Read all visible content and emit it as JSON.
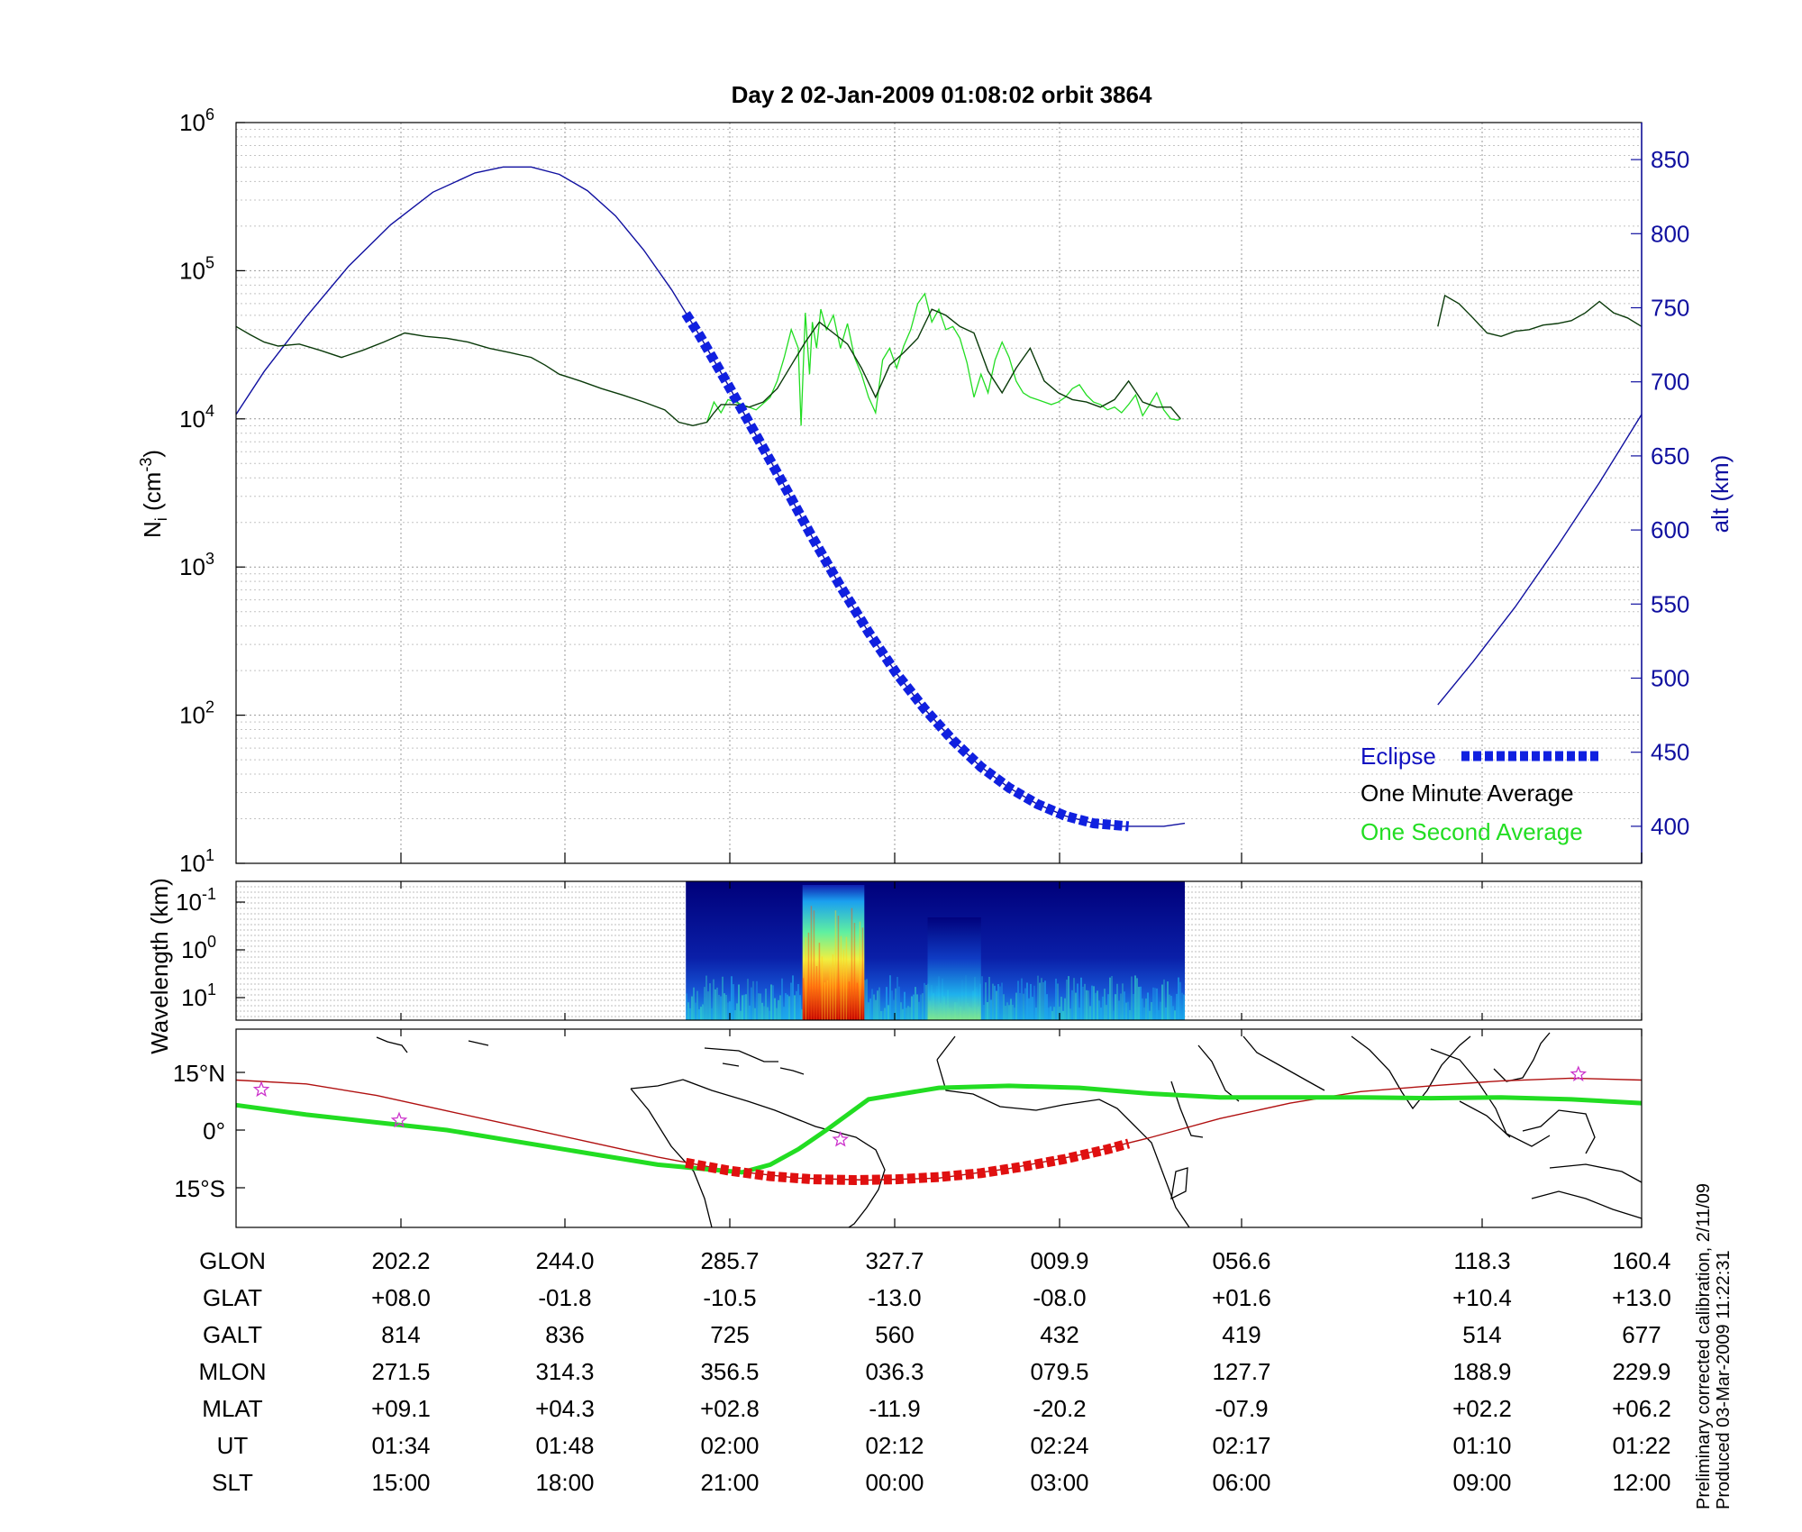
{
  "title": "Day 2  02-Jan-2009 01:08:02   orbit 3864",
  "colors": {
    "altitude": "#1010a0",
    "one_minute": "#0a3a0a",
    "one_second": "#22dd22",
    "eclipse": "#1020e0",
    "ground_track": "#b01010",
    "mag_equator": "#22dd22",
    "star": "#cc33cc"
  },
  "chart_data": [
    {
      "type": "line",
      "name": "density-panel",
      "ylabel_left": "N",
      "ylabel_left_sub": "i",
      "ylabel_left_unit_pre": "(cm",
      "ylabel_left_unit_exp": "-3",
      "ylabel_left_unit_post": ")",
      "ylabel_right": "alt (km)",
      "y_left_scale": "log",
      "y_left_range": [
        10,
        1000000
      ],
      "y_left_ticks": [
        {
          "base": "10",
          "exp": "1",
          "value": 10
        },
        {
          "base": "10",
          "exp": "2",
          "value": 100
        },
        {
          "base": "10",
          "exp": "3",
          "value": 1000
        },
        {
          "base": "10",
          "exp": "4",
          "value": 10000
        },
        {
          "base": "10",
          "exp": "5",
          "value": 100000
        },
        {
          "base": "10",
          "exp": "6",
          "value": 1000000
        }
      ],
      "y_right_range": [
        375,
        875
      ],
      "y_right_ticks": [
        "400",
        "450",
        "500",
        "550",
        "600",
        "650",
        "700",
        "750",
        "800",
        "850"
      ],
      "grid": true,
      "legend_position": "bottom-right",
      "legend": [
        {
          "label": "Eclipse",
          "style": "eclipse"
        },
        {
          "label": "One Minute Average",
          "style": "one_minute"
        },
        {
          "label": "One Second Average",
          "style": "one_second"
        }
      ],
      "series": [
        {
          "name": "alt (km)",
          "axis": "right",
          "x": [
            0,
            0.02,
            0.05,
            0.08,
            0.11,
            0.14,
            0.17,
            0.19,
            0.21,
            0.23,
            0.25,
            0.27,
            0.29,
            0.31,
            0.33,
            0.35,
            0.37,
            0.39,
            0.41,
            0.43,
            0.45,
            0.47,
            0.49,
            0.51,
            0.53,
            0.55,
            0.57,
            0.59,
            0.61,
            0.63,
            0.645,
            0.66,
            0.675
          ],
          "y": [
            678,
            707,
            744,
            778,
            806,
            828,
            841,
            845,
            845,
            840,
            829,
            812,
            789,
            762,
            731,
            698,
            664,
            630,
            595,
            562,
            531,
            503,
            479,
            458,
            440,
            426,
            415,
            407,
            402,
            400,
            400,
            400,
            402
          ]
        },
        {
          "name": "alt (km) (second pass)",
          "axis": "right",
          "x": [
            0.855,
            0.88,
            0.91,
            0.94,
            0.97,
            1.0
          ],
          "y": [
            482,
            511,
            548,
            589,
            632,
            678
          ]
        },
        {
          "name": "Eclipse",
          "axis": "right",
          "x": [
            0.32,
            0.33,
            0.35,
            0.37,
            0.39,
            0.41,
            0.43,
            0.45,
            0.47,
            0.49,
            0.51,
            0.53,
            0.55,
            0.57,
            0.59,
            0.61,
            0.635
          ],
          "y": [
            746,
            731,
            698,
            664,
            630,
            595,
            562,
            531,
            503,
            479,
            458,
            440,
            426,
            415,
            407,
            402,
            400
          ]
        },
        {
          "name": "One Minute Average",
          "axis": "left",
          "x": [
            0,
            0.01,
            0.02,
            0.03,
            0.045,
            0.06,
            0.075,
            0.09,
            0.105,
            0.12,
            0.135,
            0.15,
            0.165,
            0.18,
            0.195,
            0.21,
            0.22,
            0.23,
            0.245,
            0.26,
            0.275,
            0.29,
            0.305,
            0.315,
            0.325,
            0.335,
            0.34,
            0.345,
            0.355,
            0.365,
            0.375,
            0.385,
            0.395,
            0.405,
            0.415,
            0.425,
            0.435,
            0.445,
            0.455,
            0.465,
            0.475,
            0.485,
            0.495,
            0.505,
            0.515,
            0.525,
            0.535,
            0.545,
            0.555,
            0.565,
            0.575,
            0.585,
            0.595,
            0.605,
            0.615,
            0.625,
            0.635,
            0.645,
            0.655,
            0.665,
            0.672
          ],
          "y": [
            42000,
            37000,
            33000,
            31000,
            32000,
            29000,
            26000,
            29000,
            33000,
            38000,
            36000,
            35000,
            33000,
            30000,
            28000,
            26000,
            23000,
            20000,
            18000,
            16000,
            14500,
            13000,
            11500,
            9500,
            9000,
            9500,
            11000,
            12500,
            12500,
            12000,
            13000,
            16000,
            23000,
            33000,
            45000,
            38000,
            32000,
            22000,
            14000,
            23000,
            28000,
            35000,
            55000,
            50000,
            42000,
            38000,
            21000,
            15000,
            22000,
            30000,
            18000,
            15000,
            13500,
            13000,
            12000,
            13500,
            18000,
            13000,
            12000,
            12000,
            10000
          ]
        },
        {
          "name": "One Second Average",
          "axis": "left",
          "x": [
            0.335,
            0.34,
            0.345,
            0.35,
            0.36,
            0.37,
            0.38,
            0.385,
            0.39,
            0.395,
            0.4,
            0.402,
            0.405,
            0.408,
            0.41,
            0.413,
            0.416,
            0.42,
            0.425,
            0.43,
            0.435,
            0.44,
            0.445,
            0.45,
            0.455,
            0.46,
            0.465,
            0.47,
            0.475,
            0.48,
            0.485,
            0.49,
            0.495,
            0.5,
            0.505,
            0.51,
            0.515,
            0.52,
            0.525,
            0.53,
            0.535,
            0.54,
            0.545,
            0.55,
            0.555,
            0.56,
            0.565,
            0.57,
            0.575,
            0.58,
            0.585,
            0.59,
            0.595,
            0.6,
            0.605,
            0.61,
            0.615,
            0.62,
            0.625,
            0.63,
            0.635,
            0.64,
            0.645,
            0.65,
            0.655,
            0.66,
            0.665,
            0.67,
            0.672
          ],
          "y": [
            9500,
            13000,
            11000,
            13500,
            12500,
            11500,
            14000,
            18000,
            26000,
            40000,
            30000,
            9000,
            52000,
            20000,
            45000,
            30000,
            55000,
            40000,
            50000,
            30000,
            44000,
            26000,
            20000,
            14000,
            11000,
            25000,
            30000,
            22000,
            31000,
            40000,
            60000,
            70000,
            45000,
            55000,
            40000,
            42000,
            35000,
            24000,
            14000,
            20000,
            15000,
            25000,
            33000,
            26000,
            18000,
            15000,
            14000,
            13500,
            13000,
            12500,
            13000,
            14000,
            16000,
            17000,
            14500,
            13000,
            12500,
            11500,
            12000,
            11000,
            12500,
            14500,
            10500,
            12500,
            15000,
            11500,
            10000,
            9800,
            10000
          ]
        },
        {
          "name": "One Minute Average (second pass)",
          "axis": "left",
          "x": [
            0.855,
            0.86,
            0.87,
            0.88,
            0.89,
            0.9,
            0.91,
            0.92,
            0.93,
            0.94,
            0.95,
            0.96,
            0.97,
            0.98,
            0.99,
            1.0
          ],
          "y": [
            42000,
            68000,
            60000,
            48000,
            38000,
            36000,
            39000,
            40000,
            43000,
            44000,
            46000,
            52000,
            62000,
            52000,
            48000,
            42000
          ]
        }
      ]
    },
    {
      "type": "heatmap",
      "name": "spectrogram-panel",
      "ylabel": "Wavelength (km)",
      "y_ticks": [
        {
          "base": "10",
          "exp": "-1"
        },
        {
          "base": "10",
          "exp": "0"
        },
        {
          "base": "10",
          "exp": "1"
        }
      ],
      "x_range": [
        0.32,
        0.675
      ],
      "intense_band": [
        0.403,
        0.447
      ],
      "secondary_band": [
        0.492,
        0.53
      ]
    },
    {
      "type": "line",
      "name": "track-panel",
      "y_ticks": [
        "15°N",
        "0°",
        "15°S"
      ],
      "y_range": [
        -25,
        25
      ],
      "series": [
        {
          "name": "ground track",
          "x": [
            0,
            0.05,
            0.1,
            0.15,
            0.2,
            0.25,
            0.3,
            0.35,
            0.4,
            0.45,
            0.5,
            0.55,
            0.6,
            0.65,
            0.67,
            0.7,
            0.75,
            0.8,
            0.85,
            0.9,
            0.95,
            1.0
          ],
          "y": [
            13,
            12,
            9,
            5,
            1,
            -3,
            -7,
            -10.5,
            -12.5,
            -13,
            -12.5,
            -10,
            -6.5,
            -2,
            0,
            3,
            7,
            10,
            11.5,
            12.8,
            13.5,
            13
          ]
        },
        {
          "name": "eclipse track",
          "x": [
            0.32,
            0.35,
            0.38,
            0.41,
            0.44,
            0.47,
            0.5,
            0.53,
            0.56,
            0.59,
            0.62,
            0.635
          ],
          "y": [
            -8.5,
            -10.5,
            -12,
            -12.8,
            -13,
            -12.8,
            -12.2,
            -11.2,
            -9.5,
            -7.5,
            -5,
            -3.5
          ]
        },
        {
          "name": "magnetic equator",
          "x": [
            0,
            0.05,
            0.1,
            0.15,
            0.2,
            0.25,
            0.3,
            0.33,
            0.36,
            0.38,
            0.4,
            0.42,
            0.45,
            0.5,
            0.55,
            0.6,
            0.65,
            0.7,
            0.75,
            0.8,
            0.85,
            0.9,
            0.95,
            1.0
          ],
          "y": [
            6.5,
            4,
            2,
            0,
            -3,
            -6,
            -9,
            -10,
            -11,
            -9,
            -5,
            0,
            8,
            11,
            11.5,
            11,
            9.5,
            8.5,
            8.5,
            8.5,
            8.3,
            8.5,
            8,
            7
          ]
        }
      ],
      "stars": [
        {
          "x": 0.018,
          "y": 10.5
        },
        {
          "x": 0.116,
          "y": 2.5
        },
        {
          "x": 0.43,
          "y": -2.5
        },
        {
          "x": 0.955,
          "y": 14.5
        }
      ]
    }
  ],
  "table": {
    "row_labels": [
      "GLON",
      "GLAT",
      "GALT",
      "MLON",
      "MLAT",
      "UT",
      "SLT"
    ],
    "columns": [
      {
        "values": [
          "202.2",
          "+08.0",
          "814",
          "271.5",
          "+09.1",
          "01:34",
          "15:00"
        ]
      },
      {
        "values": [
          "244.0",
          "-01.8",
          "836",
          "314.3",
          "+04.3",
          "01:48",
          "18:00"
        ]
      },
      {
        "values": [
          "285.7",
          "-10.5",
          "725",
          "356.5",
          "+02.8",
          "02:00",
          "21:00"
        ]
      },
      {
        "values": [
          "327.7",
          "-13.0",
          "560",
          "036.3",
          "-11.9",
          "02:12",
          "00:00"
        ]
      },
      {
        "values": [
          "009.9",
          "-08.0",
          "432",
          "079.5",
          "-20.2",
          "02:24",
          "03:00"
        ]
      },
      {
        "values": [
          "056.6",
          "+01.6",
          "419",
          "127.7",
          "-07.9",
          "02:17",
          "06:00"
        ]
      },
      {
        "values": [
          "118.3",
          "+10.4",
          "514",
          "188.9",
          "+02.2",
          "01:10",
          "09:00"
        ]
      },
      {
        "values": [
          "160.4",
          "+13.0",
          "677",
          "229.9",
          "+06.2",
          "01:22",
          "12:00"
        ]
      }
    ]
  },
  "notes": {
    "line1": "Preliminary corrected calibration, 2/11/09",
    "line2": "Produced 03-Mar-2009 11:22:31"
  }
}
